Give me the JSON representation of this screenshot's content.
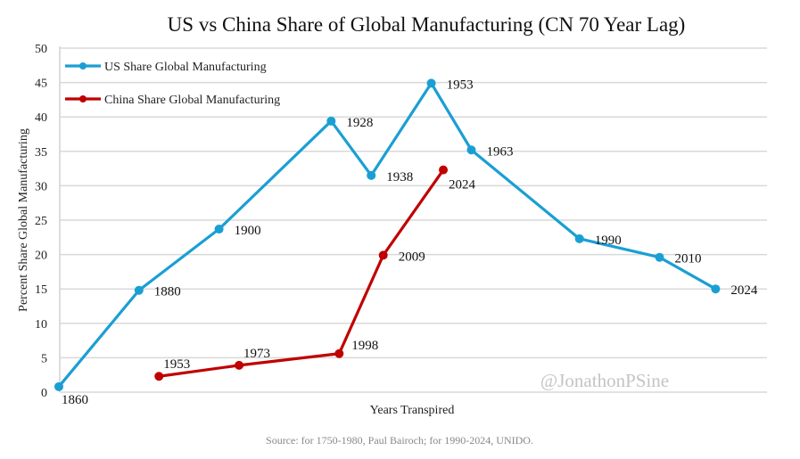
{
  "chart_data": {
    "type": "line",
    "title": "US vs China Share of Global Manufacturing (CN 70 Year Lag)",
    "xlabel": "Years Transpired",
    "ylabel": "Percent Share Global Manufacturing",
    "ylim": [
      0,
      50
    ],
    "yticks": [
      0,
      5,
      10,
      15,
      20,
      25,
      30,
      35,
      40,
      45,
      50
    ],
    "xlim": [
      0,
      176
    ],
    "grid": true,
    "legend_position": "top-left",
    "watermark": "@JonathonPSine",
    "source": "Source: for 1750-1980, Paul Bairoch; for 1990-2024, UNIDO.",
    "series": [
      {
        "name": "US Share Global Manufacturing",
        "color": "#1a9fd4",
        "points": [
          {
            "x": 0,
            "y": 0.8,
            "label": "1860",
            "pos": "below"
          },
          {
            "x": 20,
            "y": 14.8,
            "label": "1880",
            "pos": "right"
          },
          {
            "x": 40,
            "y": 23.7,
            "label": "1900",
            "pos": "right"
          },
          {
            "x": 68,
            "y": 39.4,
            "label": "1928",
            "pos": "right"
          },
          {
            "x": 78,
            "y": 31.5,
            "label": "1938",
            "pos": "right"
          },
          {
            "x": 93,
            "y": 44.9,
            "label": "1953",
            "pos": "right"
          },
          {
            "x": 103,
            "y": 35.2,
            "label": "1963",
            "pos": "right"
          },
          {
            "x": 130,
            "y": 22.3,
            "label": "1990",
            "pos": "right"
          },
          {
            "x": 150,
            "y": 19.6,
            "label": "2010",
            "pos": "right"
          },
          {
            "x": 164,
            "y": 15.0,
            "label": "2024",
            "pos": "right"
          }
        ]
      },
      {
        "name": "China Share Global Manufacturing",
        "color": "#c00000",
        "points": [
          {
            "x": 25,
            "y": 2.3,
            "label": "1953",
            "pos": "above"
          },
          {
            "x": 45,
            "y": 3.9,
            "label": "1973",
            "pos": "above"
          },
          {
            "x": 70,
            "y": 5.6,
            "label": "1998",
            "pos": "aboveright"
          },
          {
            "x": 81,
            "y": 19.9,
            "label": "2009",
            "pos": "right"
          },
          {
            "x": 96,
            "y": 32.3,
            "label": "2024",
            "pos": "belowright"
          }
        ]
      }
    ]
  }
}
